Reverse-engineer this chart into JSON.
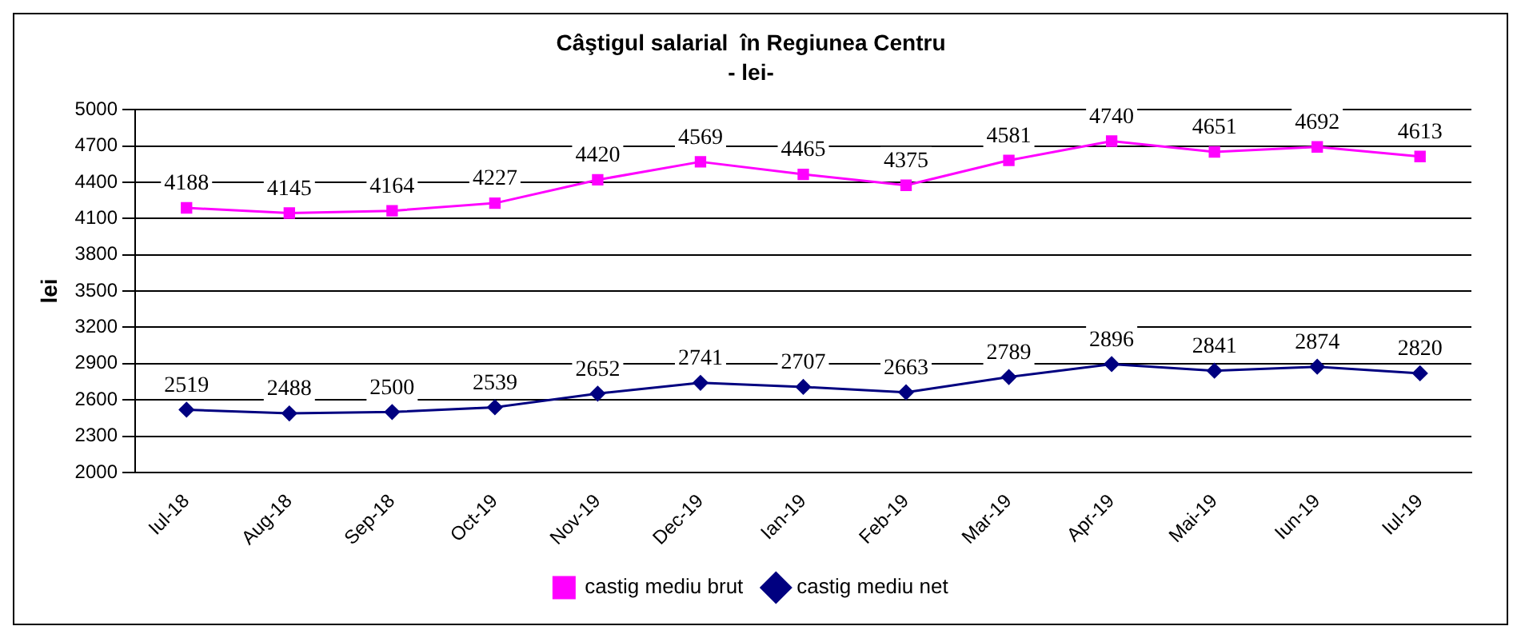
{
  "chart_data": {
    "type": "line",
    "title": "Câştigul salarial  în Regiunea Centru",
    "subtitle": "- lei-",
    "ylabel": "lei",
    "categories": [
      "Iul-18",
      "Aug-18",
      "Sep-18",
      "Oct-19",
      "Nov-19",
      "Dec-19",
      "Ian-19",
      "Feb-19",
      "Mar-19",
      "Apr-19",
      "Mai-19",
      "Iun-19",
      "Iul-19"
    ],
    "series": [
      {
        "name": "castig mediu brut",
        "color": "#ff00ff",
        "marker": "square",
        "values": [
          4188,
          4145,
          4164,
          4227,
          4420,
          4569,
          4465,
          4375,
          4581,
          4740,
          4651,
          4692,
          4613
        ]
      },
      {
        "name": "castig mediu net",
        "color": "#000080",
        "marker": "diamond",
        "values": [
          2519,
          2488,
          2500,
          2539,
          2652,
          2741,
          2707,
          2663,
          2789,
          2896,
          2841,
          2874,
          2820
        ]
      }
    ],
    "ylim": [
      2000,
      5000
    ],
    "yticks": [
      2000,
      2300,
      2600,
      2900,
      3200,
      3500,
      3800,
      4100,
      4400,
      4700,
      5000
    ],
    "grid": "y",
    "legend": "bottom",
    "data_labels": true
  }
}
